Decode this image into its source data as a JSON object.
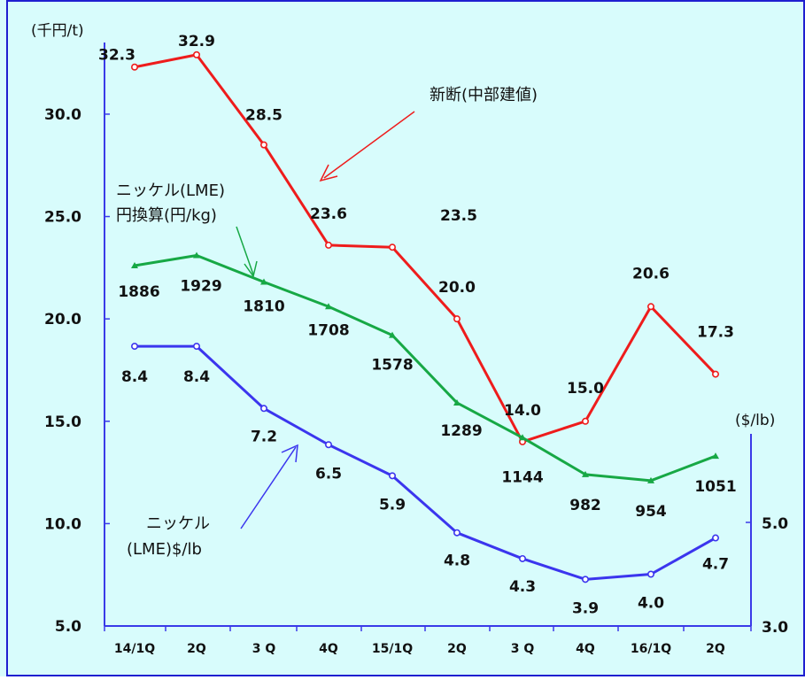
{
  "colors": {
    "background": "#d8fcfc",
    "axis": "#3a3ae8",
    "frame": "#1f1fd0",
    "red": "#ee1c1c",
    "green": "#17a845",
    "blue": "#3b35ee"
  },
  "chart_data": {
    "type": "line",
    "categories": [
      "14/1Q",
      "2Q",
      "3 Q",
      "4Q",
      "15/1Q",
      "2Q",
      "3 Q",
      "4Q",
      "16/1Q",
      "2Q"
    ],
    "left_axis": {
      "unit_label": "(千円/t)",
      "ylim": [
        5,
        33.5
      ],
      "ticks": [
        "5.0",
        "10.0",
        "15.0",
        "20.0",
        "25.0",
        "30.0"
      ]
    },
    "right_axis": {
      "unit_label": "($/lb)",
      "ylim": [
        3.0,
        10.0
      ],
      "ticks": [
        "3.0",
        "5.0"
      ]
    },
    "series": [
      {
        "key": "scrap",
        "axis": "left",
        "color": "#ee1c1c",
        "marker": "circle",
        "values": [
          32.3,
          32.9,
          28.5,
          23.6,
          23.5,
          20.0,
          14.0,
          15.0,
          20.6,
          17.3
        ],
        "labels": [
          "32.3",
          "32.9",
          "28.5",
          "23.6",
          "23.5",
          "20.0",
          "14.0",
          "15.0",
          "20.6",
          "17.3"
        ]
      },
      {
        "key": "nickel_yen",
        "axis": "left",
        "color": "#17a845",
        "marker": "triangle",
        "values": [
          22.6,
          23.1,
          21.8,
          20.6,
          19.2,
          15.9,
          14.2,
          12.4,
          12.1,
          13.3
        ],
        "labels": [
          "1886",
          "1929",
          "1810",
          "1708",
          "1578",
          "1289",
          "1144",
          "982",
          "954",
          "1051"
        ]
      },
      {
        "key": "nickel_usd",
        "axis": "right",
        "color": "#3b35ee",
        "marker": "circle",
        "values": [
          8.4,
          8.4,
          7.2,
          6.5,
          5.9,
          4.8,
          4.3,
          3.9,
          4.0,
          4.7
        ],
        "labels": [
          "8.4",
          "8.4",
          "7.2",
          "6.5",
          "5.9",
          "4.8",
          "4.3",
          "3.9",
          "4.0",
          "4.7"
        ]
      }
    ],
    "annotations": {
      "scrap": [
        "新断(中部建値)"
      ],
      "nickel_yen": [
        "ニッケル(LME)",
        "円換算(円/kg)"
      ],
      "nickel_usd": [
        "ニッケル",
        "(LME)$/lb"
      ]
    }
  }
}
